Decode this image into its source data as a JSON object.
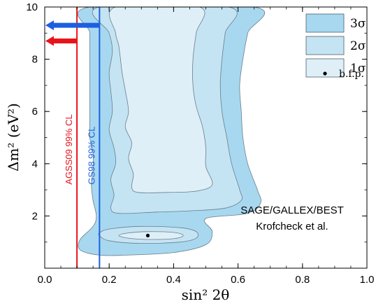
{
  "chart_data": {
    "type": "contour",
    "xlabel": "sin² 2θ",
    "ylabel": "Δm² (eV²)",
    "xlim": [
      0.0,
      1.0
    ],
    "ylim": [
      0,
      10
    ],
    "x_ticks": [
      0.0,
      0.2,
      0.4,
      0.6,
      0.8,
      1.0
    ],
    "x_tick_labels": [
      "0.0",
      "0.2",
      "0.4",
      "0.6",
      "0.8",
      "1.0"
    ],
    "y_ticks": [
      2,
      4,
      6,
      8,
      10
    ],
    "y_tick_labels": [
      "2",
      "4",
      "6",
      "8",
      "10"
    ],
    "grid": false,
    "legend_position": "top-right",
    "legend": [
      {
        "label": "3σ",
        "color": "#a7d8f0"
      },
      {
        "label": "2σ",
        "color": "#c5e4f3"
      },
      {
        "label": "1σ",
        "color": "#deeff8"
      },
      {
        "label": "b.f.p.",
        "marker": "dot"
      }
    ],
    "annotation_lines": [
      "SAGE/GALLEX/BEST",
      "Krofcheck et al."
    ],
    "best_fit_point": {
      "x": 0.32,
      "y": 1.25
    },
    "exclusion_limits": [
      {
        "label": "AGSS09 99% CL",
        "x": 0.1,
        "color": "#e8141c",
        "arrow_y": 8.7
      },
      {
        "label": "GS98 99% CL",
        "x": 0.17,
        "color": "#1c5fe0",
        "arrow_y": 9.3
      }
    ],
    "regions": [
      {
        "name": "3σ",
        "fill": "#a7d8f0",
        "points": [
          [
            0.14,
            10
          ],
          [
            0.65,
            10
          ],
          [
            0.63,
            9
          ],
          [
            0.615,
            8
          ],
          [
            0.605,
            7
          ],
          [
            0.61,
            6
          ],
          [
            0.615,
            5
          ],
          [
            0.63,
            4
          ],
          [
            0.66,
            3
          ],
          [
            0.67,
            2.5
          ],
          [
            0.63,
            2.1
          ],
          [
            0.5,
            1.9
          ],
          [
            0.52,
            1.4
          ],
          [
            0.5,
            0.9
          ],
          [
            0.4,
            0.6
          ],
          [
            0.25,
            0.5
          ],
          [
            0.17,
            0.5
          ],
          [
            0.11,
            0.7
          ],
          [
            0.11,
            1.1
          ],
          [
            0.15,
            1.6
          ],
          [
            0.16,
            2
          ],
          [
            0.15,
            2.6
          ],
          [
            0.145,
            3.2
          ],
          [
            0.15,
            3.8
          ],
          [
            0.15,
            4.4
          ],
          [
            0.14,
            5
          ],
          [
            0.14,
            5.8
          ],
          [
            0.14,
            6.8
          ],
          [
            0.14,
            8
          ],
          [
            0.14,
            9
          ]
        ]
      },
      {
        "name": "2σ",
        "fill": "#c5e4f3",
        "points": [
          [
            0.17,
            10
          ],
          [
            0.57,
            10
          ],
          [
            0.56,
            9
          ],
          [
            0.55,
            8
          ],
          [
            0.545,
            7
          ],
          [
            0.55,
            6
          ],
          [
            0.565,
            5
          ],
          [
            0.58,
            4
          ],
          [
            0.605,
            3
          ],
          [
            0.61,
            2.6
          ],
          [
            0.56,
            2.3
          ],
          [
            0.46,
            2.2
          ],
          [
            0.35,
            2.15
          ],
          [
            0.23,
            2.1
          ],
          [
            0.205,
            2.3
          ],
          [
            0.215,
            2.8
          ],
          [
            0.205,
            3.4
          ],
          [
            0.22,
            4
          ],
          [
            0.215,
            4.6
          ],
          [
            0.2,
            5.3
          ],
          [
            0.21,
            6
          ],
          [
            0.205,
            6.8
          ],
          [
            0.2,
            7.5
          ],
          [
            0.21,
            8.3
          ],
          [
            0.2,
            9
          ]
        ]
      },
      {
        "name": "2σ-island",
        "fill": "#c5e4f3",
        "points": [
          [
            0.17,
            1.25
          ],
          [
            0.2,
            1.05
          ],
          [
            0.3,
            0.95
          ],
          [
            0.42,
            1.0
          ],
          [
            0.47,
            1.15
          ],
          [
            0.47,
            1.4
          ],
          [
            0.42,
            1.55
          ],
          [
            0.3,
            1.6
          ],
          [
            0.2,
            1.5
          ],
          [
            0.17,
            1.35
          ]
        ]
      },
      {
        "name": "1σ",
        "fill": "#deeff8",
        "points": [
          [
            0.22,
            10
          ],
          [
            0.48,
            10
          ],
          [
            0.47,
            9
          ],
          [
            0.46,
            8
          ],
          [
            0.46,
            7
          ],
          [
            0.47,
            6.2
          ],
          [
            0.49,
            5.4
          ],
          [
            0.5,
            4.6
          ],
          [
            0.5,
            3.9
          ],
          [
            0.52,
            3.2
          ],
          [
            0.47,
            2.95
          ],
          [
            0.38,
            2.9
          ],
          [
            0.29,
            2.9
          ],
          [
            0.27,
            3.1
          ],
          [
            0.275,
            3.6
          ],
          [
            0.26,
            4.2
          ],
          [
            0.27,
            4.8
          ],
          [
            0.25,
            5.4
          ],
          [
            0.26,
            6
          ],
          [
            0.25,
            6.8
          ],
          [
            0.24,
            7.5
          ],
          [
            0.23,
            8.5
          ],
          [
            0.22,
            9
          ]
        ]
      },
      {
        "name": "1σ-island",
        "fill": "#deeff8",
        "points": [
          [
            0.23,
            1.25
          ],
          [
            0.26,
            1.15
          ],
          [
            0.32,
            1.1
          ],
          [
            0.4,
            1.13
          ],
          [
            0.43,
            1.25
          ],
          [
            0.4,
            1.37
          ],
          [
            0.32,
            1.4
          ],
          [
            0.26,
            1.35
          ]
        ]
      }
    ]
  }
}
